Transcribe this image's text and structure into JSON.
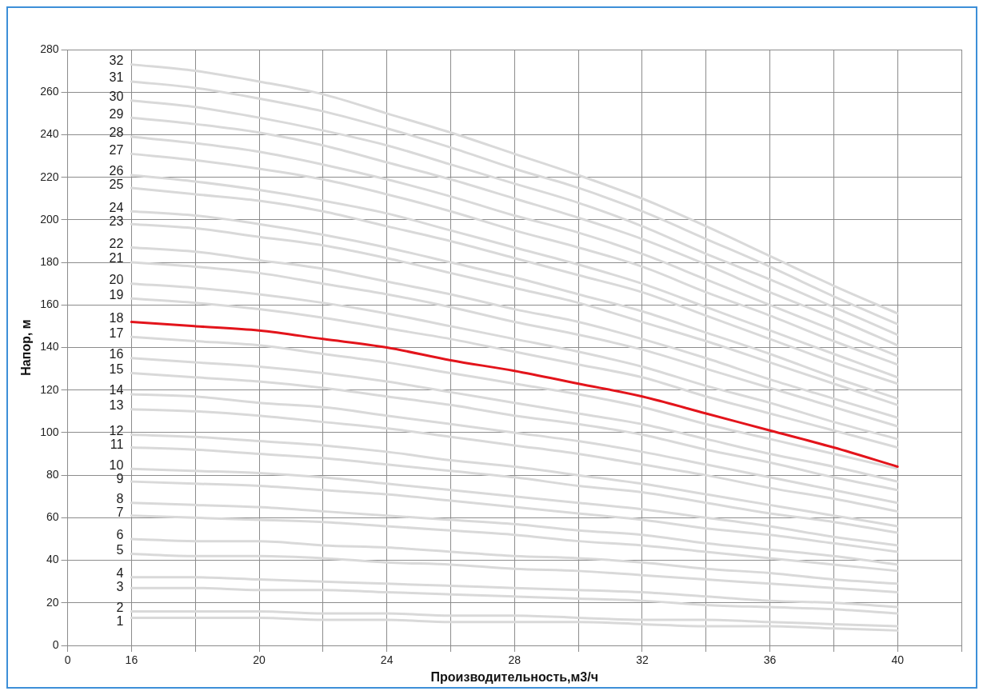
{
  "chart_data": {
    "type": "line",
    "xlabel": "Производительность,м3/ч",
    "ylabel": "Напор, м",
    "categories": [
      "0",
      "16",
      null,
      "20",
      null,
      "24",
      null,
      "28",
      null,
      "32",
      null,
      "36",
      null,
      "40",
      null
    ],
    "ylim": [
      0,
      280
    ],
    "yticks": [
      0,
      20,
      40,
      60,
      80,
      100,
      120,
      140,
      160,
      180,
      200,
      220,
      240,
      260,
      280
    ],
    "grid": true,
    "legend": false,
    "marker": "none",
    "line_style": "solid",
    "series": [
      {
        "name": "1",
        "color": "#d9d9d9",
        "values": [
          null,
          13,
          13,
          13,
          12,
          12,
          11,
          11,
          11,
          10,
          9,
          9,
          8,
          7,
          null
        ]
      },
      {
        "name": "2",
        "color": "#d9d9d9",
        "values": [
          null,
          16,
          16,
          16,
          15,
          15,
          14,
          14,
          13,
          12,
          12,
          11,
          10,
          9,
          null
        ]
      },
      {
        "name": "3",
        "color": "#d9d9d9",
        "values": [
          null,
          27,
          27,
          26,
          26,
          25,
          24,
          23,
          22,
          21,
          19,
          18,
          17,
          15,
          null
        ]
      },
      {
        "name": "4",
        "color": "#d9d9d9",
        "values": [
          null,
          32,
          32,
          31,
          30,
          29,
          28,
          27,
          26,
          25,
          23,
          21,
          20,
          18,
          null
        ]
      },
      {
        "name": "5",
        "color": "#d9d9d9",
        "values": [
          null,
          43,
          42,
          42,
          41,
          39,
          38,
          36,
          35,
          33,
          31,
          29,
          27,
          25,
          null
        ]
      },
      {
        "name": "6",
        "color": "#d9d9d9",
        "values": [
          null,
          50,
          49,
          49,
          47,
          46,
          44,
          42,
          41,
          39,
          36,
          34,
          31,
          29,
          null
        ]
      },
      {
        "name": "7",
        "color": "#d9d9d9",
        "values": [
          null,
          61,
          60,
          59,
          58,
          56,
          54,
          52,
          49,
          47,
          44,
          41,
          38,
          35,
          null
        ]
      },
      {
        "name": "8",
        "color": "#d9d9d9",
        "values": [
          null,
          67,
          66,
          65,
          63,
          61,
          59,
          57,
          54,
          52,
          48,
          45,
          42,
          38,
          null
        ]
      },
      {
        "name": "9",
        "color": "#d9d9d9",
        "values": [
          null,
          77,
          76,
          75,
          73,
          71,
          68,
          65,
          62,
          59,
          55,
          52,
          48,
          44,
          null
        ]
      },
      {
        "name": "10",
        "color": "#d9d9d9",
        "values": [
          null,
          83,
          82,
          81,
          79,
          76,
          73,
          70,
          67,
          64,
          60,
          56,
          51,
          47,
          null
        ]
      },
      {
        "name": "11",
        "color": "#d9d9d9",
        "values": [
          null,
          93,
          92,
          90,
          88,
          85,
          82,
          79,
          75,
          72,
          67,
          62,
          58,
          53,
          null
        ]
      },
      {
        "name": "12",
        "color": "#d9d9d9",
        "values": [
          null,
          99,
          98,
          96,
          94,
          91,
          87,
          84,
          80,
          76,
          71,
          66,
          61,
          56,
          null
        ]
      },
      {
        "name": "13",
        "color": "#d9d9d9",
        "values": [
          null,
          111,
          110,
          108,
          105,
          102,
          98,
          94,
          90,
          85,
          80,
          74,
          69,
          63,
          null
        ]
      },
      {
        "name": "14",
        "color": "#d9d9d9",
        "values": [
          null,
          118,
          117,
          114,
          112,
          108,
          104,
          100,
          96,
          91,
          85,
          79,
          73,
          67,
          null
        ]
      },
      {
        "name": "15",
        "color": "#d9d9d9",
        "values": [
          null,
          128,
          126,
          124,
          121,
          117,
          113,
          108,
          104,
          99,
          92,
          86,
          79,
          73,
          null
        ]
      },
      {
        "name": "16",
        "color": "#d9d9d9",
        "values": [
          null,
          135,
          133,
          131,
          128,
          124,
          119,
          114,
          109,
          104,
          97,
          90,
          84,
          77,
          null
        ]
      },
      {
        "name": "17",
        "color": "#d9d9d9",
        "values": [
          null,
          145,
          143,
          141,
          137,
          133,
          128,
          123,
          118,
          112,
          104,
          97,
          90,
          83,
          null
        ]
      },
      {
        "name": "18",
        "color": "#e3141b",
        "values": [
          null,
          152,
          150,
          148,
          144,
          140,
          134,
          129,
          123,
          117,
          109,
          101,
          93,
          84,
          null
        ]
      },
      {
        "name": "19",
        "color": "#d9d9d9",
        "values": [
          null,
          163,
          161,
          158,
          154,
          149,
          144,
          138,
          132,
          126,
          117,
          109,
          101,
          93,
          null
        ]
      },
      {
        "name": "20",
        "color": "#d9d9d9",
        "values": [
          null,
          170,
          168,
          165,
          161,
          156,
          150,
          144,
          138,
          131,
          122,
          114,
          105,
          97,
          null
        ]
      },
      {
        "name": "21",
        "color": "#d9d9d9",
        "values": [
          null,
          180,
          178,
          175,
          170,
          165,
          159,
          152,
          146,
          139,
          130,
          121,
          112,
          103,
          null
        ]
      },
      {
        "name": "22",
        "color": "#d9d9d9",
        "values": [
          null,
          187,
          185,
          181,
          177,
          171,
          165,
          158,
          152,
          144,
          135,
          125,
          116,
          107,
          null
        ]
      },
      {
        "name": "23",
        "color": "#d9d9d9",
        "values": [
          null,
          198,
          196,
          192,
          188,
          182,
          175,
          168,
          161,
          152,
          143,
          133,
          123,
          113,
          null
        ]
      },
      {
        "name": "24",
        "color": "#d9d9d9",
        "values": [
          null,
          204,
          202,
          198,
          193,
          187,
          180,
          173,
          165,
          157,
          147,
          137,
          126,
          116,
          null
        ]
      },
      {
        "name": "25",
        "color": "#d9d9d9",
        "values": [
          null,
          215,
          212,
          209,
          204,
          197,
          190,
          182,
          174,
          166,
          155,
          144,
          133,
          123,
          null
        ]
      },
      {
        "name": "26",
        "color": "#d9d9d9",
        "values": [
          null,
          221,
          218,
          214,
          209,
          203,
          195,
          187,
          179,
          170,
          159,
          148,
          137,
          126,
          null
        ]
      },
      {
        "name": "27",
        "color": "#d9d9d9",
        "values": [
          null,
          231,
          228,
          224,
          219,
          212,
          204,
          195,
          187,
          178,
          166,
          155,
          143,
          132,
          null
        ]
      },
      {
        "name": "28",
        "color": "#d9d9d9",
        "values": [
          null,
          239,
          236,
          232,
          226,
          219,
          211,
          202,
          194,
          184,
          172,
          160,
          148,
          136,
          null
        ]
      },
      {
        "name": "29",
        "color": "#d9d9d9",
        "values": [
          null,
          248,
          245,
          241,
          235,
          227,
          219,
          210,
          201,
          191,
          179,
          166,
          154,
          141,
          null
        ]
      },
      {
        "name": "30",
        "color": "#d9d9d9",
        "values": [
          null,
          256,
          253,
          248,
          242,
          235,
          226,
          217,
          208,
          197,
          184,
          172,
          159,
          146,
          null
        ]
      },
      {
        "name": "31",
        "color": "#d9d9d9",
        "values": [
          null,
          265,
          262,
          257,
          251,
          243,
          234,
          224,
          215,
          204,
          191,
          178,
          164,
          151,
          null
        ]
      },
      {
        "name": "32",
        "color": "#d9d9d9",
        "values": [
          null,
          273,
          270,
          265,
          259,
          250,
          241,
          231,
          221,
          210,
          197,
          183,
          169,
          156,
          null
        ]
      }
    ]
  }
}
